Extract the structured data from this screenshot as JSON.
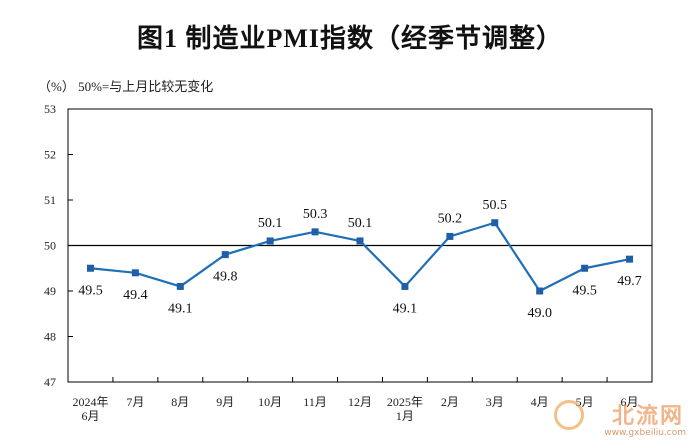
{
  "title": "图1  制造业PMI指数（经季节调整）",
  "unit_note": "（%）  50%=与上月比较无变化",
  "colors": {
    "line": "#1f6fb8",
    "marker": "#1f5fa8",
    "axis": "#000000"
  },
  "watermark": {
    "text": "北流网",
    "url": "www.gxbeiliu.com"
  },
  "chart_data": {
    "type": "line",
    "title": "图1  制造业PMI指数（经季节调整）",
    "ylabel": "（%）",
    "ylim": [
      47,
      53
    ],
    "yticks": [
      47,
      48,
      49,
      50,
      51,
      52,
      53
    ],
    "reference_line": 50,
    "categories": [
      [
        "2024年",
        "6月"
      ],
      [
        "7月"
      ],
      [
        "8月"
      ],
      [
        "9月"
      ],
      [
        "10月"
      ],
      [
        "11月"
      ],
      [
        "12月"
      ],
      [
        "2025年",
        "1月"
      ],
      [
        "2月"
      ],
      [
        "3月"
      ],
      [
        "4月"
      ],
      [
        "5月"
      ],
      [
        "6月"
      ]
    ],
    "values": [
      49.5,
      49.4,
      49.1,
      49.8,
      50.1,
      50.3,
      50.1,
      49.1,
      50.2,
      50.5,
      49.0,
      49.5,
      49.7
    ],
    "value_labels": [
      "49.5",
      "49.4",
      "49.1",
      "49.8",
      "50.1",
      "50.3",
      "50.1",
      "49.1",
      "50.2",
      "50.5",
      "49.0",
      "49.5",
      "49.7"
    ],
    "label_positions": [
      "below",
      "below",
      "below",
      "below",
      "above",
      "above",
      "above",
      "below",
      "above",
      "above",
      "below",
      "below",
      "below"
    ],
    "grid": false
  }
}
